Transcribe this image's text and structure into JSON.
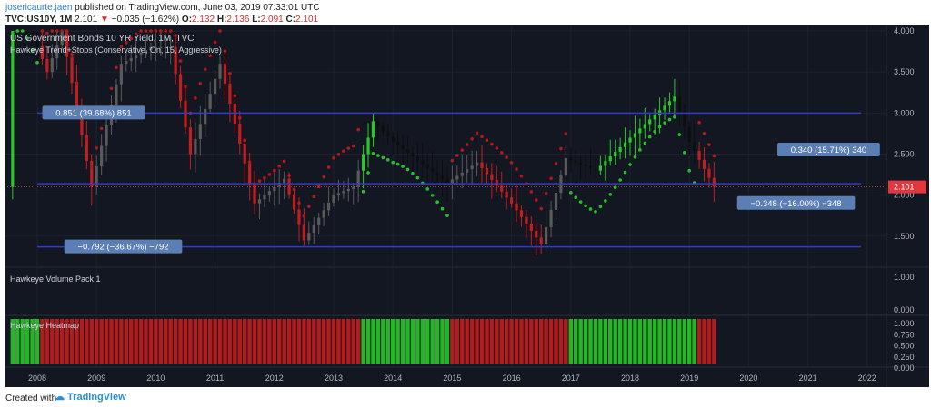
{
  "header": {
    "author": "josericaurte.jaen",
    "published_text": "published on TradingView.com, June 03, 2019 07:33:01 UTC",
    "symbol": "TVC:US10Y, 1M",
    "last": "2.101",
    "change_arrow": "▼",
    "change": "−0.035 (−1.62%)",
    "o_label": "O:",
    "o_value": "2.132",
    "h_label": "H:",
    "h_value": "2.136",
    "l_label": "L:",
    "l_value": "2.091",
    "c_label": "C:",
    "c_value": "2.101"
  },
  "main_pane": {
    "title": "US Government Bonds 10 YR Yield, 1M, TVC",
    "indicator": "Hawkeye Trend+Stops (Conservative, On, 15, Aggressive)",
    "price_ticks": [
      "4.000",
      "3.500",
      "3.000",
      "2.500",
      "2.000",
      "1.500"
    ],
    "price_ticks_values": [
      4.0,
      3.5,
      3.0,
      2.5,
      2.0,
      1.5
    ],
    "last_price_label": "2.101",
    "measure_labels": [
      {
        "text": "0.851 (39.68%) 851"
      },
      {
        "text": "−0.792 (−36.67%) −792"
      },
      {
        "text": "0.340 (15.71%) 340"
      },
      {
        "text": "−0.348 (−16.00%) −348"
      }
    ],
    "hlines": [
      3.0,
      2.14,
      1.37
    ]
  },
  "volume_pane": {
    "title": "Hawkeye Volume Pack 1",
    "ticks": [
      "1.000",
      "0.000"
    ]
  },
  "heatmap_pane": {
    "title": "Hawkeye Heatmap",
    "ticks": [
      "1.000",
      "0.750",
      "0.500",
      "0.250",
      "0.000"
    ]
  },
  "time_axis": [
    "2008",
    "2009",
    "2010",
    "2011",
    "2012",
    "2013",
    "2014",
    "2015",
    "2016",
    "2017",
    "2018",
    "2019",
    "2020",
    "2021",
    "2022"
  ],
  "colors": {
    "background": "#131722",
    "bull": "#26c926",
    "bear": "#c41d1d",
    "hline": "#2e3ad6",
    "label_bg": "#5b7fb4",
    "price_tag": "#e0383e"
  },
  "chart_data": {
    "type": "candlestick",
    "title": "US Government Bonds 10 YR Yield, 1M, TVC",
    "ylim": [
      1.2,
      4.0
    ],
    "x_range": [
      "2007-08",
      "2022-06"
    ],
    "regime_segments": [
      {
        "from": "2007-08",
        "to": "2008-01",
        "state": "bull"
      },
      {
        "from": "2008-01",
        "to": "2013-06",
        "state": "bear"
      },
      {
        "from": "2013-06",
        "to": "2014-12",
        "state": "bull"
      },
      {
        "from": "2014-12",
        "to": "2016-12",
        "state": "bear"
      },
      {
        "from": "2016-12",
        "to": "2019-02",
        "state": "bull"
      },
      {
        "from": "2019-02",
        "to": "2019-06",
        "state": "bear"
      }
    ],
    "price_path": [
      [
        "2007-08",
        4.6
      ],
      [
        "2008-03",
        3.5
      ],
      [
        "2008-06",
        4.0
      ],
      [
        "2008-12",
        2.1
      ],
      [
        "2009-06",
        3.6
      ],
      [
        "2009-12",
        3.8
      ],
      [
        "2010-04",
        3.8
      ],
      [
        "2010-08",
        2.5
      ],
      [
        "2011-02",
        3.6
      ],
      [
        "2011-09",
        1.9
      ],
      [
        "2012-03",
        2.2
      ],
      [
        "2012-07",
        1.45
      ],
      [
        "2013-01",
        2.0
      ],
      [
        "2013-05",
        2.1
      ],
      [
        "2013-09",
        2.9
      ],
      [
        "2014-01",
        2.65
      ],
      [
        "2014-12",
        2.15
      ],
      [
        "2015-06",
        2.4
      ],
      [
        "2016-01",
        1.9
      ],
      [
        "2016-07",
        1.4
      ],
      [
        "2016-12",
        2.45
      ],
      [
        "2017-06",
        2.3
      ],
      [
        "2018-01",
        2.7
      ],
      [
        "2018-10",
        3.2
      ],
      [
        "2019-01",
        2.65
      ],
      [
        "2019-06",
        2.101
      ]
    ]
  }
}
